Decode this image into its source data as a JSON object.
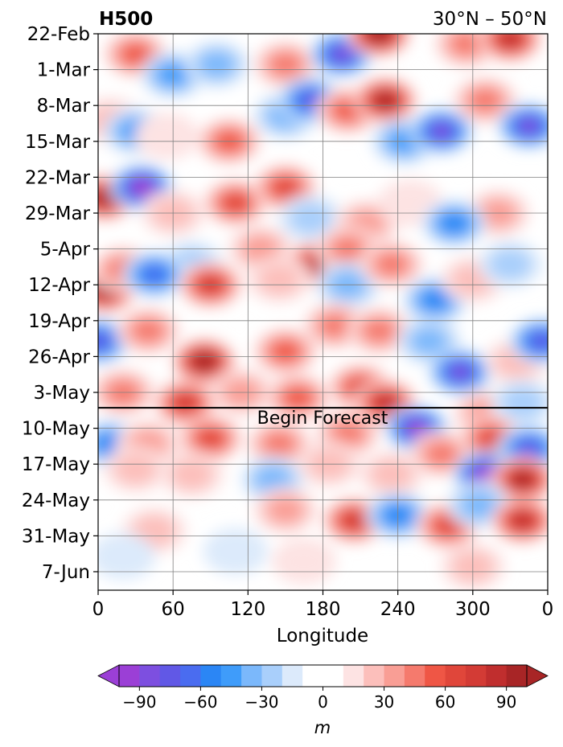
{
  "chart_data": {
    "type": "heatmap",
    "title_left": "H500",
    "title_right": "30°N – 50°N",
    "xlabel": "Longitude",
    "ylabel": "",
    "x_ticks": [
      "0",
      "60",
      "120",
      "180",
      "240",
      "300",
      "0"
    ],
    "x_tick_values": [
      0,
      60,
      120,
      180,
      240,
      300,
      360
    ],
    "xlim": [
      0,
      360
    ],
    "y_ticks": [
      "22-Feb",
      "1-Mar",
      "8-Mar",
      "15-Mar",
      "22-Mar",
      "29-Mar",
      "5-Apr",
      "12-Apr",
      "19-Apr",
      "26-Apr",
      "3-May",
      "10-May",
      "17-May",
      "24-May",
      "31-May",
      "7-Jun"
    ],
    "ylim": [
      "22-Feb",
      "10-Jun"
    ],
    "y_axis_inverted": true,
    "grid": true,
    "forecast_line": {
      "date": "6-May",
      "label": "Begin Forecast"
    },
    "colorbar": {
      "label": "m",
      "ticks": [
        "−90",
        "−60",
        "−30",
        "0",
        "30",
        "60",
        "90"
      ],
      "tick_values": [
        -90,
        -60,
        -30,
        0,
        30,
        60,
        90
      ],
      "levels": [
        -100,
        -90,
        -80,
        -70,
        -60,
        -50,
        -40,
        -30,
        -20,
        -10,
        10,
        20,
        30,
        40,
        50,
        60,
        70,
        80,
        90,
        100
      ],
      "colors": [
        "#9b3fd6",
        "#7d4fe0",
        "#6158e6",
        "#4a6cf0",
        "#2b86f5",
        "#3f9cfa",
        "#7bb8fb",
        "#a9cffb",
        "#dceafb",
        "#ffffff",
        "#fde3e3",
        "#fcbfbb",
        "#f99e95",
        "#f57a6d",
        "#ef5645",
        "#e0463a",
        "#d33b35",
        "#c02e2e",
        "#a82526"
      ],
      "extend": "both"
    },
    "features": [
      {
        "lon": 30,
        "date": 4,
        "value": 45
      },
      {
        "lon": 60,
        "date": 8,
        "value": -35
      },
      {
        "lon": 95,
        "date": 6,
        "value": -25
      },
      {
        "lon": 150,
        "date": 6,
        "value": 35
      },
      {
        "lon": 195,
        "date": 4,
        "value": -75
      },
      {
        "lon": 225,
        "date": 0,
        "value": 100
      },
      {
        "lon": 295,
        "date": 2,
        "value": 35
      },
      {
        "lon": 330,
        "date": 1,
        "value": 80
      },
      {
        "lon": 10,
        "date": 17,
        "value": 20
      },
      {
        "lon": 30,
        "date": 19,
        "value": -35
      },
      {
        "lon": 55,
        "date": 20,
        "value": 10
      },
      {
        "lon": 105,
        "date": 21,
        "value": 45
      },
      {
        "lon": 150,
        "date": 16,
        "value": -25
      },
      {
        "lon": 170,
        "date": 13,
        "value": -70
      },
      {
        "lon": 200,
        "date": 15,
        "value": 45
      },
      {
        "lon": 230,
        "date": 13,
        "value": 85
      },
      {
        "lon": 245,
        "date": 21,
        "value": -35
      },
      {
        "lon": 275,
        "date": 19,
        "value": -75
      },
      {
        "lon": 310,
        "date": 13,
        "value": 35
      },
      {
        "lon": 345,
        "date": 18,
        "value": -75
      },
      {
        "lon": 5,
        "date": 32,
        "value": 85
      },
      {
        "lon": 35,
        "date": 30,
        "value": -100
      },
      {
        "lon": 60,
        "date": 35,
        "value": 20
      },
      {
        "lon": 110,
        "date": 33,
        "value": 60
      },
      {
        "lon": 150,
        "date": 30,
        "value": 55
      },
      {
        "lon": 170,
        "date": 36,
        "value": -15
      },
      {
        "lon": 215,
        "date": 37,
        "value": 25
      },
      {
        "lon": 250,
        "date": 33,
        "value": 10
      },
      {
        "lon": 320,
        "date": 35,
        "value": 25
      },
      {
        "lon": 175,
        "date": 45,
        "value": 80
      },
      {
        "lon": 200,
        "date": 42,
        "value": 40
      },
      {
        "lon": 285,
        "date": 37,
        "value": -45
      },
      {
        "lon": 75,
        "date": 45,
        "value": -15
      },
      {
        "lon": 130,
        "date": 42,
        "value": 30
      },
      {
        "lon": 5,
        "date": 50,
        "value": 85
      },
      {
        "lon": 20,
        "date": 46,
        "value": 40
      },
      {
        "lon": 45,
        "date": 47,
        "value": -60
      },
      {
        "lon": 90,
        "date": 49,
        "value": 70
      },
      {
        "lon": 145,
        "date": 48,
        "value": 20
      },
      {
        "lon": 200,
        "date": 49,
        "value": -30
      },
      {
        "lon": 235,
        "date": 45,
        "value": 35
      },
      {
        "lon": 270,
        "date": 52,
        "value": -50
      },
      {
        "lon": 300,
        "date": 48,
        "value": 15
      },
      {
        "lon": 330,
        "date": 45,
        "value": -20
      },
      {
        "lon": 0,
        "date": 60,
        "value": -70
      },
      {
        "lon": 40,
        "date": 58,
        "value": 35
      },
      {
        "lon": 85,
        "date": 64,
        "value": 100
      },
      {
        "lon": 150,
        "date": 62,
        "value": 45
      },
      {
        "lon": 190,
        "date": 57,
        "value": 40
      },
      {
        "lon": 225,
        "date": 58,
        "value": 35
      },
      {
        "lon": 265,
        "date": 60,
        "value": -30
      },
      {
        "lon": 290,
        "date": 66,
        "value": -80
      },
      {
        "lon": 335,
        "date": 64,
        "value": 20
      },
      {
        "lon": 355,
        "date": 60,
        "value": -70
      },
      {
        "lon": 20,
        "date": 70,
        "value": 35
      },
      {
        "lon": 70,
        "date": 72,
        "value": 70
      },
      {
        "lon": 115,
        "date": 70,
        "value": 30
      },
      {
        "lon": 160,
        "date": 71,
        "value": 50
      },
      {
        "lon": 210,
        "date": 69,
        "value": 55
      },
      {
        "lon": 230,
        "date": 72,
        "value": 75
      },
      {
        "lon": 255,
        "date": 77,
        "value": -90
      },
      {
        "lon": 310,
        "date": 74,
        "value": 30
      },
      {
        "lon": 340,
        "date": 72,
        "value": -20
      },
      {
        "lon": 10,
        "date": 80,
        "value": -45
      },
      {
        "lon": 40,
        "date": 80,
        "value": 25
      },
      {
        "lon": 90,
        "date": 79,
        "value": 55
      },
      {
        "lon": 145,
        "date": 80,
        "value": 40
      },
      {
        "lon": 200,
        "date": 78,
        "value": 35
      },
      {
        "lon": 275,
        "date": 82,
        "value": 40
      },
      {
        "lon": 315,
        "date": 79,
        "value": 60
      },
      {
        "lon": 345,
        "date": 81,
        "value": -70
      },
      {
        "lon": 30,
        "date": 85,
        "value": 20
      },
      {
        "lon": 75,
        "date": 86,
        "value": 20
      },
      {
        "lon": 140,
        "date": 87,
        "value": -30
      },
      {
        "lon": 185,
        "date": 84,
        "value": 20
      },
      {
        "lon": 235,
        "date": 86,
        "value": 15
      },
      {
        "lon": 310,
        "date": 86,
        "value": -100
      },
      {
        "lon": 340,
        "date": 87,
        "value": 90
      },
      {
        "lon": 150,
        "date": 93,
        "value": 30
      },
      {
        "lon": 205,
        "date": 95,
        "value": 65
      },
      {
        "lon": 240,
        "date": 94,
        "value": -45
      },
      {
        "lon": 280,
        "date": 96,
        "value": 55
      },
      {
        "lon": 305,
        "date": 92,
        "value": -25
      },
      {
        "lon": 340,
        "date": 95,
        "value": 80
      },
      {
        "lon": 45,
        "date": 97,
        "value": 15
      },
      {
        "lon": 20,
        "date": 102,
        "value": -10
      },
      {
        "lon": 110,
        "date": 101,
        "value": -10
      },
      {
        "lon": 165,
        "date": 103,
        "value": 10
      },
      {
        "lon": 300,
        "date": 104,
        "value": 15
      }
    ]
  }
}
